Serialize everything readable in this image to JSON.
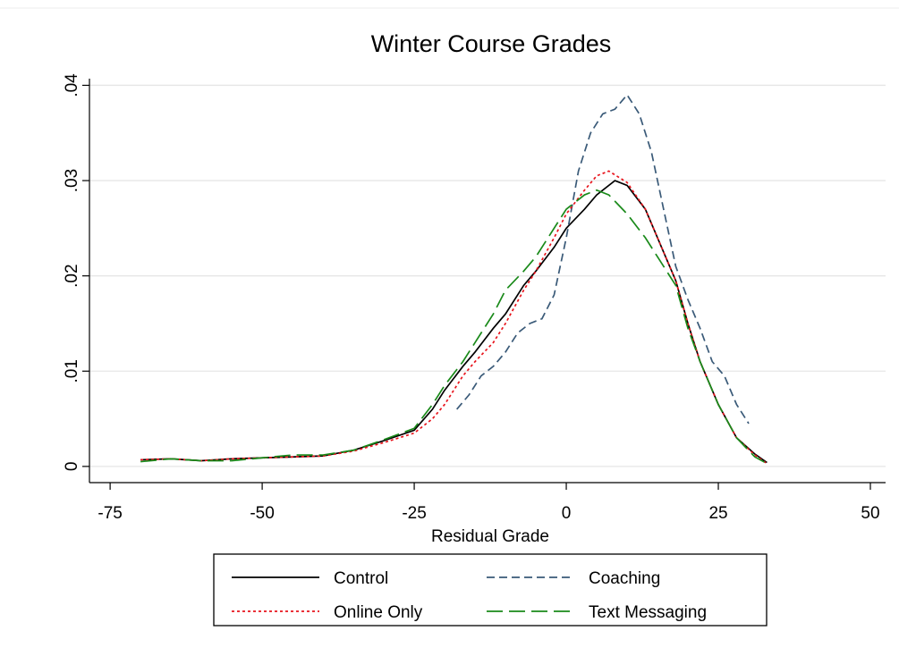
{
  "chart_data": {
    "type": "line",
    "title": "Winter Course Grades",
    "x_label": "Residual Grade",
    "xlim": [
      -78.4,
      52.5
    ],
    "xticks": [
      -75,
      -50,
      -25,
      0,
      25,
      50
    ],
    "ylim": [
      -0.0017,
      0.0407
    ],
    "yticks": [
      0,
      {
        "value": 0.01,
        "label": ".01"
      },
      {
        "value": 0.02,
        "label": ".02"
      },
      {
        "value": 0.03,
        "label": ".03"
      },
      {
        "value": 0.04,
        "label": ".04"
      }
    ],
    "grid": true,
    "legend": "bottom",
    "series": [
      {
        "name": "Control",
        "color": "#000000",
        "dash": "solid",
        "x": [
          -70,
          -65,
          -60,
          -55,
          -50,
          -45,
          -40,
          -35,
          -30,
          -25,
          -22,
          -20,
          -17,
          -15,
          -12,
          -10,
          -7,
          -5,
          -2,
          0,
          3,
          5,
          8,
          10,
          13,
          15,
          18,
          20,
          22,
          25,
          28,
          31,
          33
        ],
        "values": [
          0.0007,
          0.0008,
          0.0006,
          0.0008,
          0.0009,
          0.001,
          0.0011,
          0.0017,
          0.0027,
          0.0038,
          0.006,
          0.008,
          0.0105,
          0.012,
          0.0145,
          0.016,
          0.019,
          0.0205,
          0.023,
          0.025,
          0.027,
          0.0285,
          0.03,
          0.0295,
          0.027,
          0.024,
          0.0195,
          0.015,
          0.011,
          0.0065,
          0.003,
          0.0013,
          0.0004
        ]
      },
      {
        "name": "Coaching",
        "color": "#3a5a78",
        "dash": "dashed",
        "x": [
          -18,
          -16,
          -14,
          -12,
          -10,
          -8,
          -6,
          -4,
          -2,
          0,
          2,
          4,
          6,
          8,
          10,
          12,
          14,
          16,
          18,
          20,
          22,
          24,
          26,
          28,
          30
        ],
        "values": [
          0.006,
          0.0075,
          0.0095,
          0.0105,
          0.012,
          0.014,
          0.015,
          0.0155,
          0.018,
          0.024,
          0.031,
          0.035,
          0.037,
          0.0375,
          0.039,
          0.037,
          0.033,
          0.027,
          0.021,
          0.0175,
          0.0145,
          0.011,
          0.0095,
          0.0065,
          0.0045
        ]
      },
      {
        "name": "Online Only",
        "color": "#e8141c",
        "dash": "dotted",
        "x": [
          -70,
          -65,
          -60,
          -55,
          -50,
          -45,
          -40,
          -35,
          -30,
          -25,
          -22,
          -20,
          -17,
          -15,
          -12,
          -10,
          -7,
          -5,
          -2,
          0,
          3,
          5,
          7,
          10,
          13,
          15,
          18,
          20,
          22,
          25,
          28,
          31,
          33
        ],
        "values": [
          0.0007,
          0.0008,
          0.0006,
          0.0008,
          0.0009,
          0.001,
          0.0011,
          0.0016,
          0.0025,
          0.0035,
          0.005,
          0.0065,
          0.0095,
          0.011,
          0.013,
          0.015,
          0.0185,
          0.0205,
          0.024,
          0.0265,
          0.029,
          0.0305,
          0.031,
          0.0298,
          0.027,
          0.024,
          0.0195,
          0.015,
          0.011,
          0.0065,
          0.003,
          0.0012,
          0.0003
        ]
      },
      {
        "name": "Text Messaging",
        "color": "#1a8a1a",
        "dash": "longdash",
        "x": [
          -70,
          -65,
          -60,
          -55,
          -50,
          -45,
          -40,
          -35,
          -30,
          -25,
          -22,
          -20,
          -17,
          -15,
          -12,
          -10,
          -7,
          -5,
          -2,
          0,
          3,
          5,
          7,
          10,
          13,
          15,
          18,
          20,
          22,
          25,
          28,
          31,
          33
        ],
        "values": [
          0.0005,
          0.0008,
          0.0006,
          0.0006,
          0.0009,
          0.0012,
          0.0012,
          0.0017,
          0.0028,
          0.004,
          0.0065,
          0.0085,
          0.011,
          0.013,
          0.016,
          0.0185,
          0.0205,
          0.022,
          0.025,
          0.027,
          0.0285,
          0.029,
          0.0285,
          0.0265,
          0.024,
          0.022,
          0.019,
          0.0145,
          0.011,
          0.0065,
          0.003,
          0.001,
          0.0003
        ]
      }
    ]
  }
}
